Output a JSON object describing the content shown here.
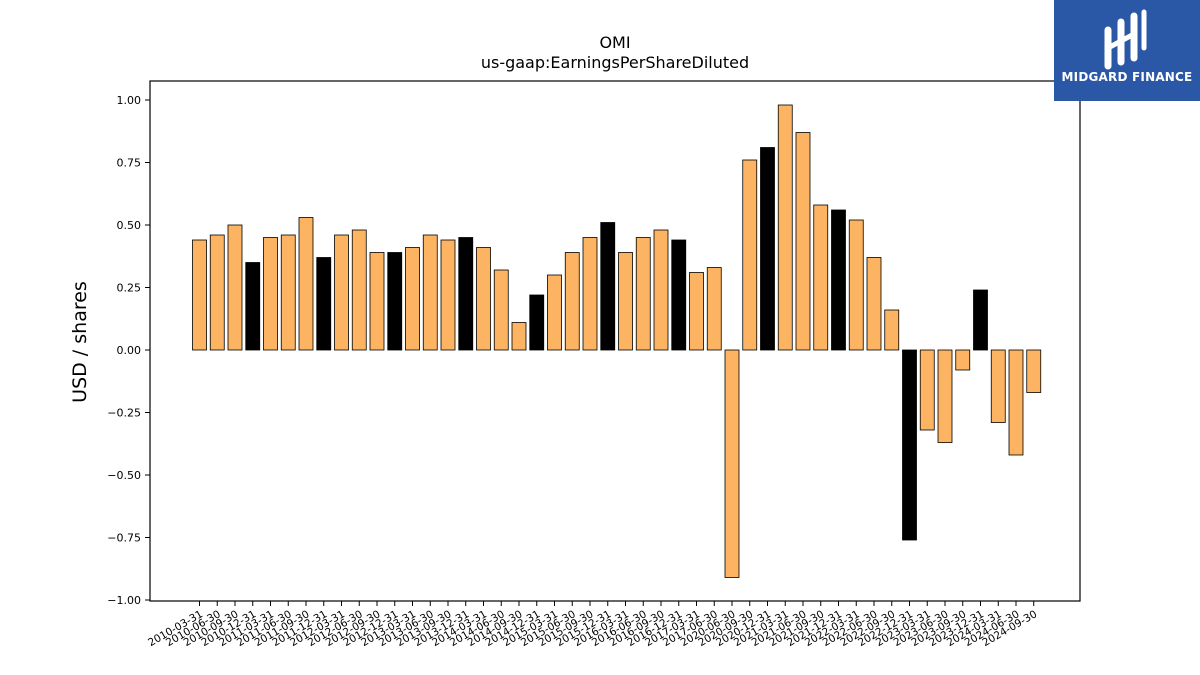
{
  "chart_data": {
    "type": "bar",
    "title": "OMI",
    "subtitle": "us-gaap:EarningsPerShareDiluted",
    "xlabel": "",
    "ylabel": "USD / shares",
    "ylim": [
      -1.0,
      1.07
    ],
    "yticks": [
      -1.0,
      -0.75,
      -0.5,
      -0.25,
      0.0,
      0.25,
      0.5,
      0.75,
      1.0
    ],
    "ytick_labels": [
      "−1.00",
      "−0.75",
      "−0.50",
      "−0.25",
      "0.00",
      "0.25",
      "0.50",
      "0.75",
      "1.00"
    ],
    "grid": false,
    "colors": {
      "regular": "#fdb462",
      "highlight": "#000000",
      "edge": "#000000"
    },
    "categories": [
      "2010-03-31",
      "2010-06-30",
      "2010-09-30",
      "2010-12-31",
      "2011-03-31",
      "2011-06-30",
      "2011-09-30",
      "2011-12-31",
      "2012-03-31",
      "2012-06-30",
      "2012-09-30",
      "2012-12-31",
      "2013-03-31",
      "2013-06-30",
      "2013-09-30",
      "2013-12-31",
      "2014-03-31",
      "2014-06-30",
      "2014-09-30",
      "2014-12-31",
      "2015-03-31",
      "2015-06-30",
      "2015-09-30",
      "2015-12-31",
      "2016-03-31",
      "2016-06-30",
      "2016-09-30",
      "2016-12-31",
      "2017-03-31",
      "2017-06-30",
      "2020-06-30",
      "2020-09-30",
      "2020-12-31",
      "2021-03-31",
      "2021-06-30",
      "2021-09-30",
      "2021-12-31",
      "2022-03-31",
      "2022-06-30",
      "2022-09-30",
      "2022-12-31",
      "2023-03-31",
      "2023-06-30",
      "2023-09-30",
      "2023-12-31",
      "2024-03-31",
      "2024-06-30",
      "2024-09-30"
    ],
    "values": [
      0.44,
      0.46,
      0.5,
      0.35,
      0.45,
      0.46,
      0.53,
      0.37,
      0.46,
      0.48,
      0.39,
      0.39,
      0.41,
      0.46,
      0.44,
      0.45,
      0.41,
      0.32,
      0.11,
      0.22,
      0.3,
      0.39,
      0.45,
      0.51,
      0.39,
      0.45,
      0.48,
      0.44,
      0.31,
      0.33,
      -0.91,
      0.76,
      0.81,
      0.98,
      0.87,
      0.58,
      0.56,
      0.52,
      0.37,
      0.16,
      -0.76,
      -0.32,
      -0.37,
      -0.08,
      0.24,
      -0.29,
      -0.42,
      -0.17
    ],
    "highlight": [
      false,
      false,
      false,
      true,
      false,
      false,
      false,
      true,
      false,
      false,
      false,
      true,
      false,
      false,
      false,
      true,
      false,
      false,
      false,
      true,
      false,
      false,
      false,
      true,
      false,
      false,
      false,
      true,
      false,
      false,
      false,
      false,
      true,
      false,
      false,
      false,
      true,
      false,
      false,
      false,
      true,
      false,
      false,
      false,
      true,
      false,
      false,
      false
    ]
  },
  "brand": {
    "name": "MIDGARD FINANCE"
  }
}
